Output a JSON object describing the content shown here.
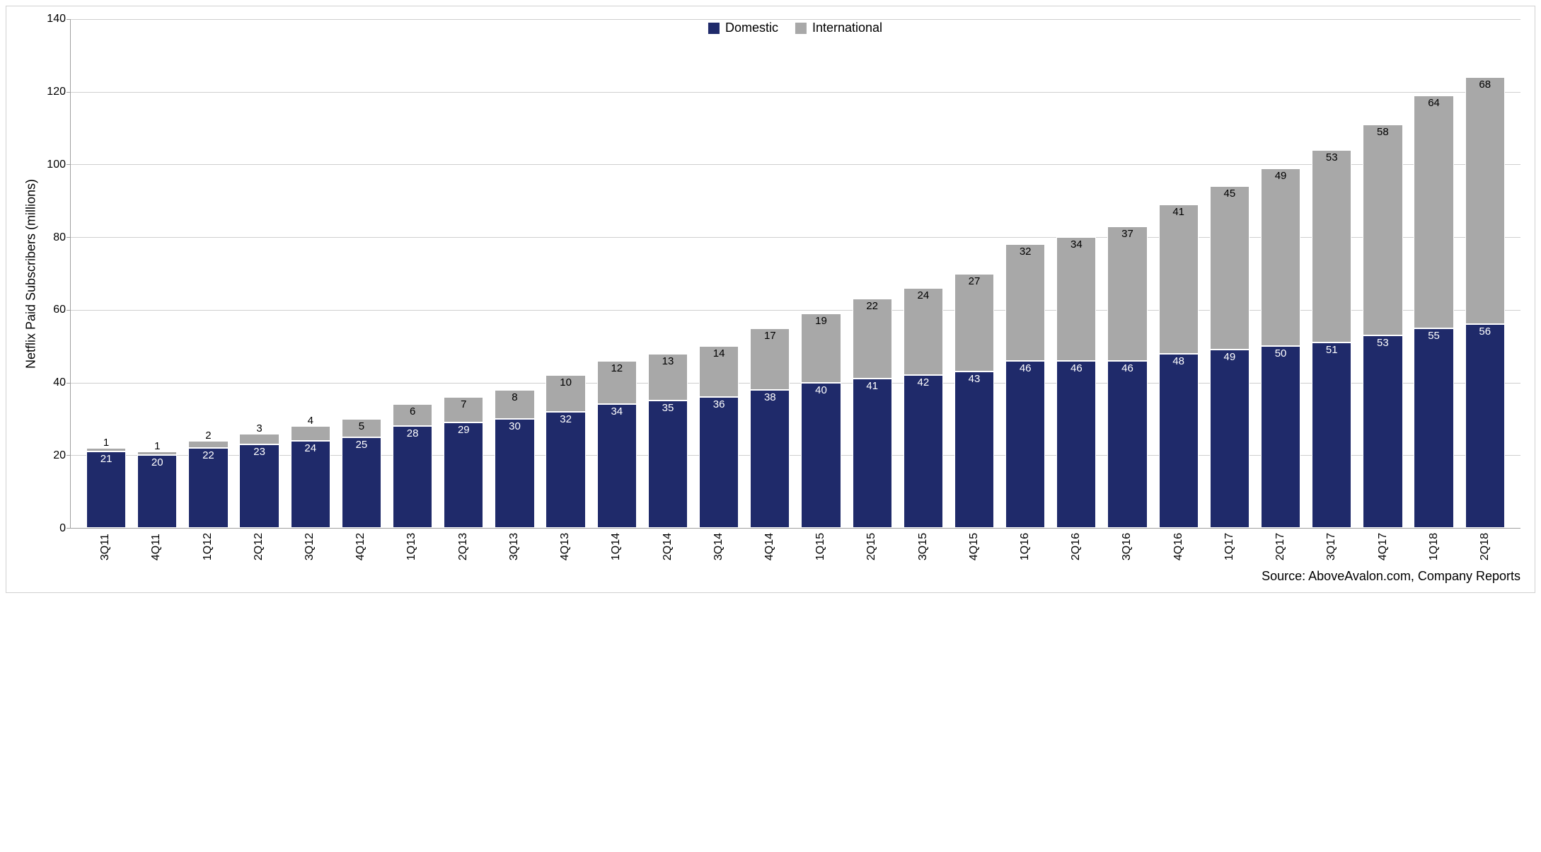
{
  "chart": {
    "type": "stacked-bar",
    "ylabel": "Netflix Paid Subscribers (millions)",
    "ylim": [
      0,
      140
    ],
    "ytick_step": 20,
    "yticks": [
      0,
      20,
      40,
      60,
      80,
      100,
      120,
      140
    ],
    "background_color": "#ffffff",
    "grid_color": "#cfcfcf",
    "axis_color": "#a0a0a0",
    "bar_border_color": "#ffffff",
    "label_fontsize": 18,
    "tick_fontsize": 16,
    "data_label_fontsize": 15,
    "bar_width_ratio": 0.78,
    "legend": {
      "position": "top-center",
      "items": [
        {
          "key": "domestic",
          "label": "Domestic",
          "color": "#1f2a6a"
        },
        {
          "key": "international",
          "label": "International",
          "color": "#a8a8a8"
        }
      ]
    },
    "series": {
      "domestic_color": "#1f2a6a",
      "international_color": "#a8a8a8"
    },
    "categories": [
      "3Q11",
      "4Q11",
      "1Q12",
      "2Q12",
      "3Q12",
      "4Q12",
      "1Q13",
      "2Q13",
      "3Q13",
      "4Q13",
      "1Q14",
      "2Q14",
      "3Q14",
      "4Q14",
      "1Q15",
      "2Q15",
      "3Q15",
      "4Q15",
      "1Q16",
      "2Q16",
      "3Q16",
      "4Q16",
      "1Q17",
      "2Q17",
      "3Q17",
      "4Q17",
      "1Q18",
      "2Q18"
    ],
    "domestic": [
      21,
      20,
      22,
      23,
      24,
      25,
      28,
      29,
      30,
      32,
      34,
      35,
      36,
      38,
      40,
      41,
      42,
      43,
      46,
      46,
      46,
      48,
      49,
      50,
      51,
      53,
      55,
      56
    ],
    "international": [
      1,
      1,
      2,
      3,
      4,
      5,
      6,
      7,
      8,
      10,
      12,
      13,
      14,
      17,
      19,
      22,
      24,
      27,
      32,
      34,
      37,
      41,
      45,
      49,
      53,
      58,
      64,
      68
    ],
    "intl_label_above_threshold": 5
  },
  "source": "Source: AboveAvalon.com, Company Reports"
}
